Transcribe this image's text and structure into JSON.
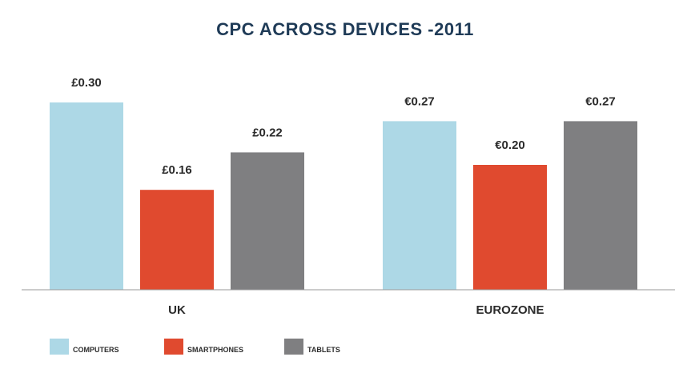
{
  "chart_data": {
    "type": "bar",
    "title": "CPC ACROSS DEVICES -2011",
    "xlabel": "",
    "ylabel": "",
    "ylim": [
      0,
      0.3
    ],
    "grid": false,
    "legend_position": "bottom-left",
    "categories": [
      "UK",
      "EUROZONE"
    ],
    "series": [
      {
        "name": "COMPUTERS",
        "color": "#add8e6",
        "values": [
          0.3,
          0.27
        ],
        "labels": [
          "£0.30",
          "€0.27"
        ]
      },
      {
        "name": "SMARTPHONES",
        "color": "#e04a2f",
        "values": [
          0.16,
          0.2
        ],
        "labels": [
          "£0.16",
          "€0.20"
        ]
      },
      {
        "name": "TABLETS",
        "color": "#7f7f81",
        "values": [
          0.22,
          0.27
        ],
        "labels": [
          "£0.22",
          "€0.27"
        ]
      }
    ]
  },
  "style": {
    "title_color": "#1f3b57",
    "text_color": "#2b2b2b",
    "axis_color": "#9a9a9a"
  }
}
